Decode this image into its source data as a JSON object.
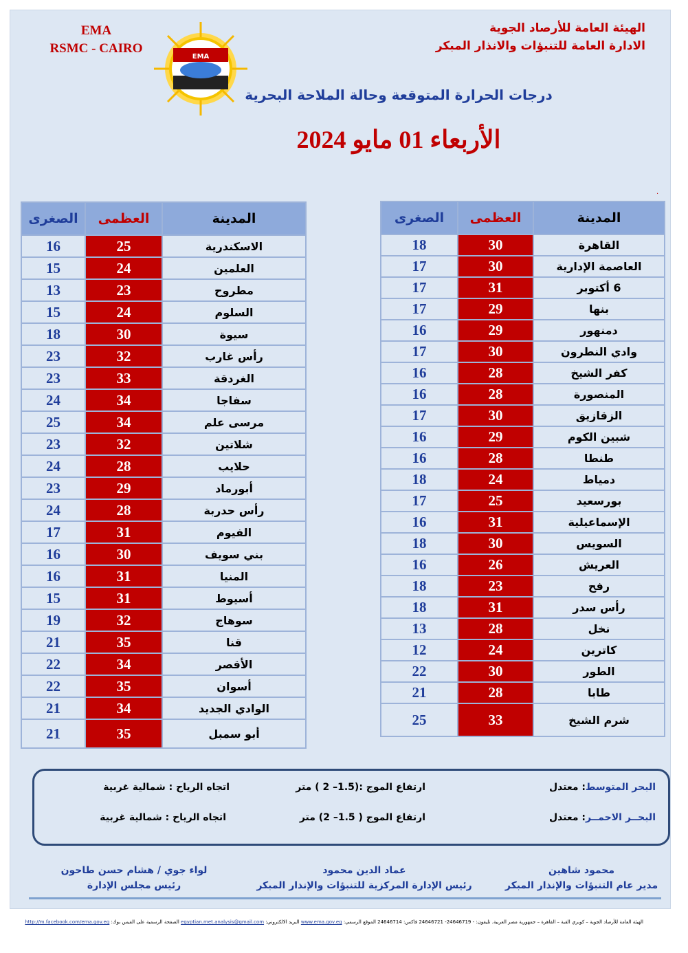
{
  "header": {
    "ema_line1": "EMA",
    "ema_line2": "RSMC - CAIRO",
    "logo_text": "EMA",
    "org_line1": "الهيئة العامة للأرصاد الجوية",
    "org_line2": "الادارة العامة للتنبؤات والانذار المبكر",
    "subtitle": "درجات الحرارة المتوقعة وحالة الملاحة البحرية",
    "date": "الأربعاء 01 مايو 2024"
  },
  "table_headers": {
    "city": "المدينة",
    "max": "العظمى",
    "min": "الصغرى"
  },
  "right_table": [
    [
      "القاهرة",
      30,
      18
    ],
    [
      "العاصمة الإدارية",
      30,
      17
    ],
    [
      "6 أكتوبر",
      31,
      17
    ],
    [
      "بنها",
      29,
      17
    ],
    [
      "دمنهور",
      29,
      16
    ],
    [
      "وادي النطرون",
      30,
      17
    ],
    [
      "كفر الشيخ",
      28,
      16
    ],
    [
      "المنصورة",
      28,
      16
    ],
    [
      "الزقازيق",
      30,
      17
    ],
    [
      "شبين الكوم",
      29,
      16
    ],
    [
      "طنطا",
      28,
      16
    ],
    [
      "دمياط",
      24,
      18
    ],
    [
      "بورسعيد",
      25,
      17
    ],
    [
      "الإسماعيلية",
      31,
      16
    ],
    [
      "السويس",
      30,
      18
    ],
    [
      "العريش",
      26,
      16
    ],
    [
      "رفح",
      23,
      18
    ],
    [
      "رأس سدر",
      31,
      18
    ],
    [
      "نخل",
      28,
      13
    ],
    [
      "كاترين",
      24,
      12
    ],
    [
      "الطور",
      30,
      22
    ],
    [
      "طابا",
      28,
      21
    ],
    [
      "شرم الشيخ",
      33,
      25
    ]
  ],
  "left_table": [
    [
      "الاسكندرية",
      25,
      16
    ],
    [
      "العلمين",
      24,
      15
    ],
    [
      "مطروح",
      23,
      13
    ],
    [
      "السلوم",
      24,
      15
    ],
    [
      "سيوة",
      30,
      18
    ],
    [
      "رأس غارب",
      32,
      23
    ],
    [
      "الغردقة",
      33,
      23
    ],
    [
      "سفاجا",
      34,
      24
    ],
    [
      "مرسى علم",
      34,
      25
    ],
    [
      "شلاتين",
      32,
      23
    ],
    [
      "حلايب",
      28,
      24
    ],
    [
      "أبورماد",
      29,
      23
    ],
    [
      "رأس حدربة",
      28,
      24
    ],
    [
      "الفيوم",
      31,
      17
    ],
    [
      "بني سويف",
      30,
      16
    ],
    [
      "المنيا",
      31,
      16
    ],
    [
      "أسيوط",
      31,
      15
    ],
    [
      "سوهاج",
      32,
      19
    ],
    [
      "قنا",
      35,
      21
    ],
    [
      "الأقصر",
      34,
      22
    ],
    [
      "أسوان",
      35,
      22
    ],
    [
      "الوادي الجديد",
      34,
      21
    ],
    [
      "أبو سمبل",
      35,
      21
    ]
  ],
  "sea": [
    {
      "name": "البحر المتوسط",
      "state": ":   معتدل",
      "wave": "ارتفاع الموج :(1.5– 2 ) متر",
      "wind": "اتجاه الرياح : شمالية غربية"
    },
    {
      "name": "البحــر الاحمــر",
      "state": ":  معتدل",
      "wave": "ارتفاع الموج ( 1.5– 2) متر",
      "wind": "اتجاه الرياح : شمالية غربية"
    }
  ],
  "signatures": [
    {
      "name": "محمود شاهين",
      "title": "مدير عام التنبؤات والإنذار المبكر"
    },
    {
      "name": "عماد الدين محمود",
      "title": "رئيس الإدارة المركزية للتنبؤات والإنذار المبكر"
    },
    {
      "name": "لواء جوي / هشام حسن طاحون",
      "title": "رئيس مجلس الإدارة"
    }
  ],
  "footer": {
    "address": "الهيئة العامة للأرصاد الجوية – كوبري القبة – القاهرة – جمهورية مصر العربية. تليفون: - 24646719- 24646721 فاكس: 24646714 الموقع الرسمي:",
    "website": "www.ema.gov.eg",
    "email_label": "البريد الالكتروني:",
    "email": "egyptian.met.analysis@gmail.com",
    "facebook_label": "الصفحة الرسمية على الفيس بوك:",
    "facebook": "http://m.facebook.com/ema.gov.eg"
  },
  "colors": {
    "max_cell": "#c00000",
    "header": "#8eaadb",
    "background": "#dde7f3",
    "min_text": "#1f3d9a"
  }
}
